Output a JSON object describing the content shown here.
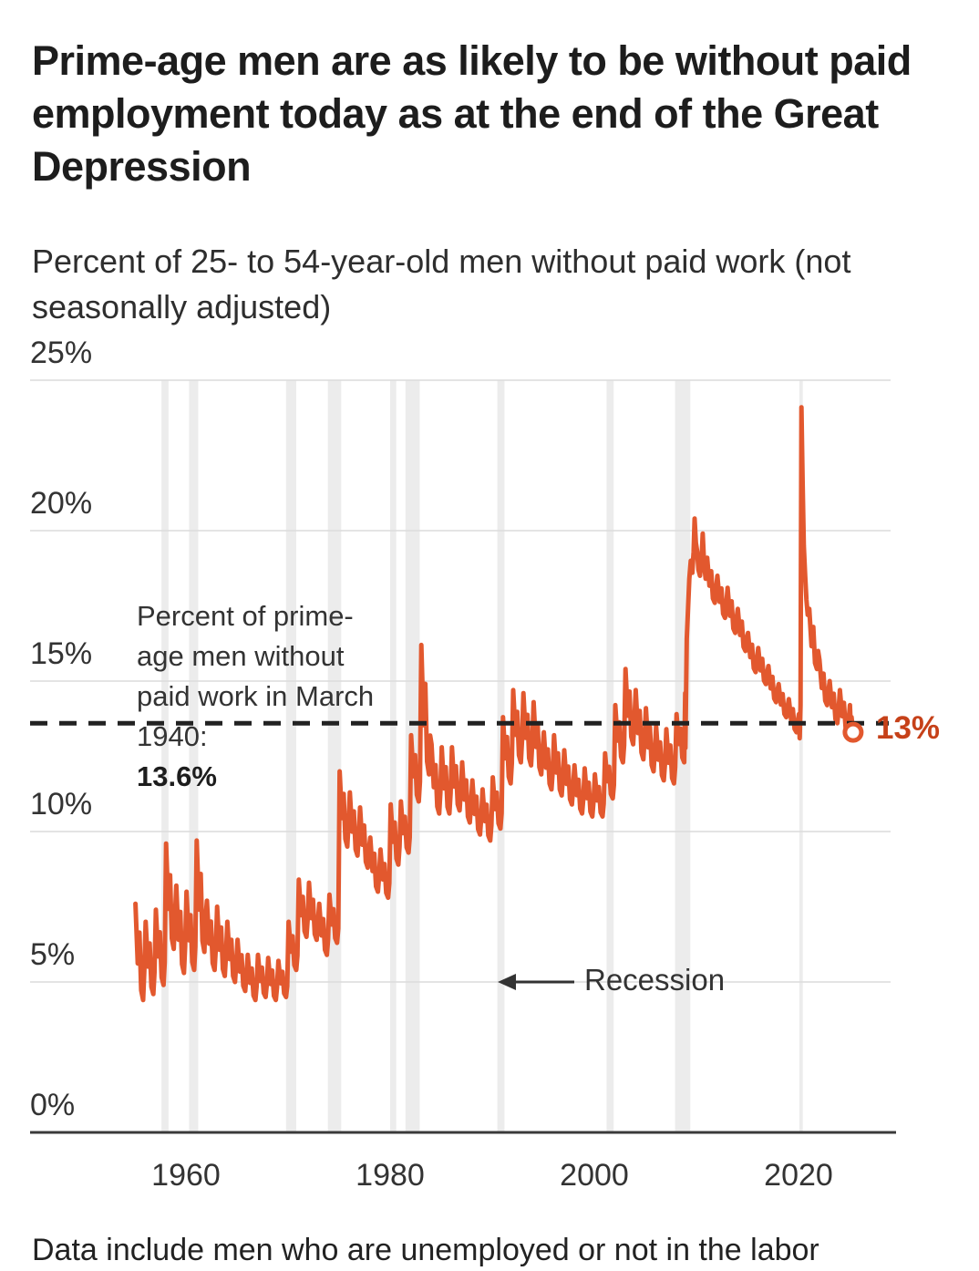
{
  "annotations": {
    "reference_text": "Percent of prime-age men without paid work in March 1940:",
    "reference_value": "13.6%",
    "recession_label": "Recession",
    "end_label": "13%"
  },
  "footer": {
    "note": "Data include men who are unemployed or not in the labor"
  },
  "colors": {
    "line": "#E2582E",
    "end_label": "#C64119",
    "dashed": "#222222",
    "grid": "#DBDBDB",
    "axis": "#3A3A3A",
    "band": "#ECECEC",
    "text": "#333333"
  },
  "chart_data": {
    "type": "line",
    "title": "Prime-age men are as likely to be without paid employment today as at the end of the Great Depression",
    "subtitle": "Percent of 25- to 54-year-old men without paid work (not seasonally adjusted)",
    "unit": "percent",
    "y_domain": [
      0,
      25
    ],
    "x_domain": [
      1954.5,
      2029
    ],
    "grid": true,
    "legend": "none",
    "y_ticks": [
      [
        25,
        "25%"
      ],
      [
        20,
        "20%"
      ],
      [
        15,
        "15%"
      ],
      [
        10,
        "10%"
      ],
      [
        5,
        "5%"
      ],
      [
        0,
        "0%"
      ]
    ],
    "x_ticks": [
      [
        1960,
        "1960"
      ],
      [
        1980,
        "1980"
      ],
      [
        2000,
        "2000"
      ],
      [
        2020,
        "2020"
      ]
    ],
    "reference_line": {
      "value": 13.6,
      "meaning": "Percent of prime-age men without paid work in March 1940"
    },
    "end_marker": {
      "year": 2025.35,
      "value": 13.3,
      "label": "13%"
    },
    "recessions": [
      [
        1957.6,
        1958.3
      ],
      [
        1960.3,
        1961.2
      ],
      [
        1969.8,
        1970.8
      ],
      [
        1973.9,
        1975.2
      ],
      [
        1980.0,
        1980.6
      ],
      [
        1981.5,
        1982.9
      ],
      [
        1990.5,
        1991.2
      ],
      [
        2001.2,
        2001.9
      ],
      [
        2007.9,
        2009.4
      ],
      [
        2020.08,
        2020.42
      ]
    ],
    "annual_envelope_year_high_low": [
      [
        1955,
        7.6,
        4.4
      ],
      [
        1956,
        7.0,
        4.6
      ],
      [
        1957,
        7.4,
        4.9
      ],
      [
        1958,
        9.6,
        6.1
      ],
      [
        1959,
        8.2,
        5.3
      ],
      [
        1960,
        8.0,
        5.4
      ],
      [
        1961,
        9.7,
        6.0
      ],
      [
        1962,
        7.7,
        5.4
      ],
      [
        1963,
        7.5,
        5.2
      ],
      [
        1964,
        7.0,
        5.0
      ],
      [
        1965,
        6.4,
        4.7
      ],
      [
        1966,
        5.9,
        4.4
      ],
      [
        1967,
        5.9,
        4.5
      ],
      [
        1968,
        5.8,
        4.4
      ],
      [
        1969,
        5.7,
        4.5
      ],
      [
        1970,
        7.0,
        5.4
      ],
      [
        1971,
        8.4,
        6.5
      ],
      [
        1972,
        8.3,
        6.4
      ],
      [
        1973,
        7.6,
        5.9
      ],
      [
        1974,
        7.9,
        6.3
      ],
      [
        1975,
        12.0,
        9.5
      ],
      [
        1976,
        11.3,
        9.2
      ],
      [
        1977,
        10.8,
        8.8
      ],
      [
        1978,
        9.8,
        8.0
      ],
      [
        1979,
        9.4,
        7.8
      ],
      [
        1980,
        10.9,
        8.9
      ],
      [
        1981,
        11.0,
        9.3
      ],
      [
        1982,
        13.2,
        11.0
      ],
      [
        1983,
        16.2,
        11.9
      ],
      [
        1984,
        12.9,
        10.6
      ],
      [
        1985,
        12.8,
        10.6
      ],
      [
        1986,
        12.8,
        10.7
      ],
      [
        1987,
        12.3,
        10.3
      ],
      [
        1988,
        11.7,
        9.9
      ],
      [
        1989,
        11.4,
        9.7
      ],
      [
        1990,
        11.8,
        10.1
      ],
      [
        1991,
        13.8,
        11.6
      ],
      [
        1992,
        14.7,
        12.3
      ],
      [
        1993,
        14.6,
        12.2
      ],
      [
        1994,
        14.3,
        11.9
      ],
      [
        1995,
        13.3,
        11.4
      ],
      [
        1996,
        13.2,
        11.2
      ],
      [
        1997,
        12.7,
        10.9
      ],
      [
        1998,
        12.2,
        10.6
      ],
      [
        1999,
        12.1,
        10.5
      ],
      [
        2000,
        11.9,
        10.5
      ],
      [
        2001,
        12.6,
        11.1
      ],
      [
        2002,
        14.2,
        12.3
      ],
      [
        2003,
        15.4,
        12.9
      ],
      [
        2004,
        14.7,
        12.4
      ],
      [
        2005,
        14.1,
        12.0
      ],
      [
        2006,
        13.5,
        11.7
      ],
      [
        2007,
        13.4,
        11.6
      ],
      [
        2008,
        13.9,
        12.3
      ],
      [
        2011,
        19.1,
        17.6
      ],
      [
        2012,
        18.5,
        17.1
      ],
      [
        2013,
        18.1,
        16.6
      ],
      [
        2014,
        17.4,
        16.0
      ],
      [
        2015,
        16.6,
        15.3
      ],
      [
        2016,
        16.1,
        14.9
      ],
      [
        2017,
        15.5,
        14.3
      ],
      [
        2018,
        14.9,
        13.8
      ],
      [
        2019,
        14.4,
        13.3
      ],
      [
        2021,
        17.4,
        15.4
      ],
      [
        2022,
        15.7,
        14.2
      ],
      [
        2023,
        15.0,
        13.6
      ],
      [
        2024,
        14.7,
        13.3
      ]
    ],
    "explicit_segments": [
      {
        "name": "great-recession",
        "points": [
          [
            2008.9,
            14.6
          ],
          [
            2009.05,
            16.4
          ],
          [
            2009.18,
            17.4
          ],
          [
            2009.3,
            18.4
          ],
          [
            2009.45,
            19.0
          ],
          [
            2009.6,
            18.6
          ],
          [
            2009.72,
            19.3
          ],
          [
            2009.82,
            20.4
          ],
          [
            2009.95,
            19.6
          ],
          [
            2010.08,
            19.3
          ],
          [
            2010.2,
            18.7
          ],
          [
            2010.35,
            18.5
          ],
          [
            2010.5,
            19.0
          ],
          [
            2010.62,
            19.9
          ],
          [
            2010.75,
            18.9
          ],
          [
            2010.9,
            18.4
          ]
        ]
      },
      {
        "name": "covid-spike",
        "points": [
          [
            2020.04,
            13.9
          ],
          [
            2020.12,
            13.1
          ],
          [
            2020.2,
            14.2
          ],
          [
            2020.29,
            24.1
          ],
          [
            2020.4,
            21.6
          ],
          [
            2020.52,
            19.5
          ],
          [
            2020.65,
            18.5
          ],
          [
            2020.78,
            17.7
          ],
          [
            2020.9,
            17.2
          ]
        ]
      },
      {
        "name": "latest",
        "points": [
          [
            2025.04,
            14.2
          ],
          [
            2025.12,
            13.5
          ],
          [
            2025.2,
            13.8
          ],
          [
            2025.35,
            13.3
          ]
        ]
      }
    ]
  }
}
